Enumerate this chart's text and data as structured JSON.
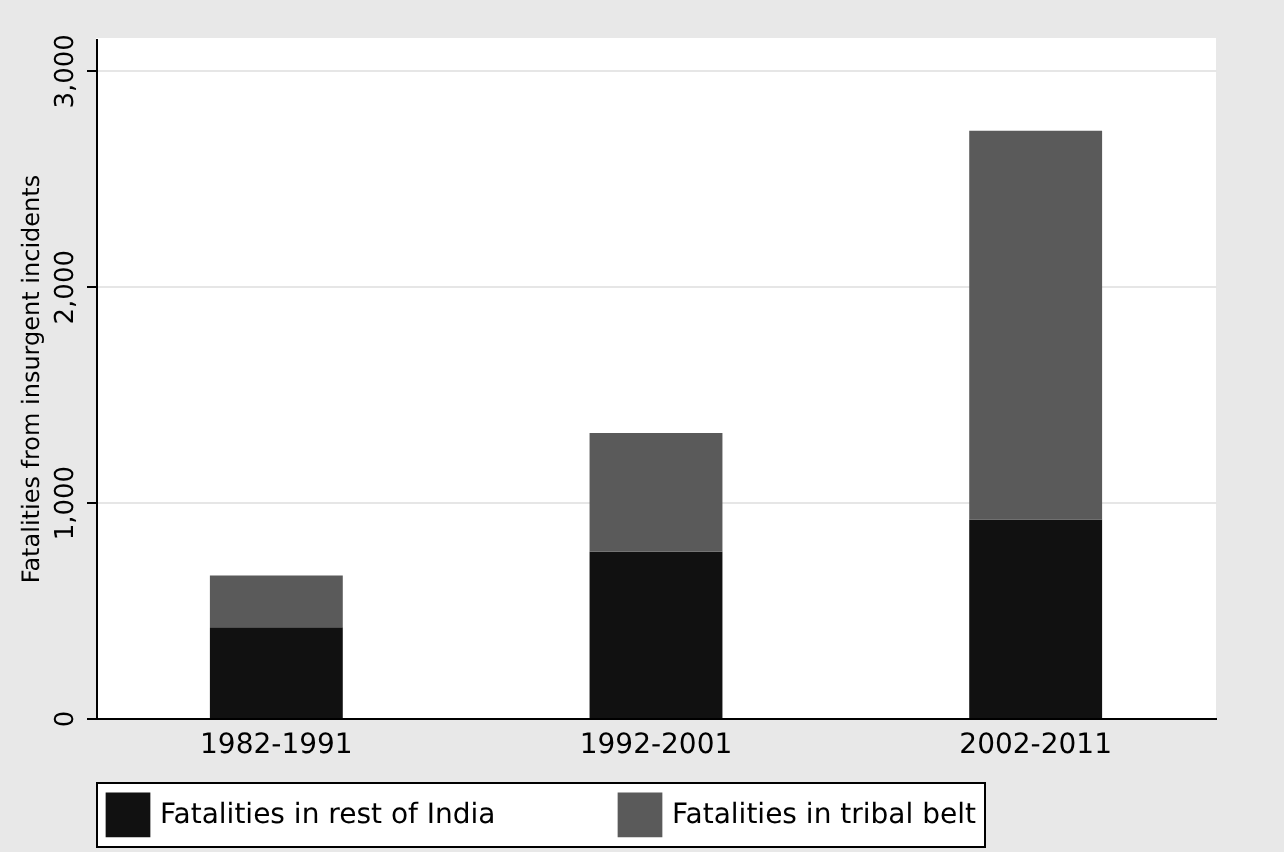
{
  "chart_data": {
    "type": "bar",
    "stacked": true,
    "ylabel": "Fatalities from insurgent incidents",
    "categories": [
      "1982-1991",
      "1992-2001",
      "2002-2011"
    ],
    "series": [
      {
        "name": "Fatalities in rest of India",
        "color": "#111111",
        "values": [
          420,
          770,
          920
        ]
      },
      {
        "name": "Fatalities in tribal belt",
        "color": "#5a5a5a",
        "values": [
          240,
          550,
          1800
        ]
      }
    ],
    "ylim": [
      0,
      3150
    ],
    "yticks": [
      {
        "value": 0,
        "label": "0"
      },
      {
        "value": 1000,
        "label": "1,000"
      },
      {
        "value": 2000,
        "label": "2,000"
      },
      {
        "value": 3000,
        "label": "3,000"
      }
    ],
    "grid": "y",
    "legend": "bottom"
  }
}
